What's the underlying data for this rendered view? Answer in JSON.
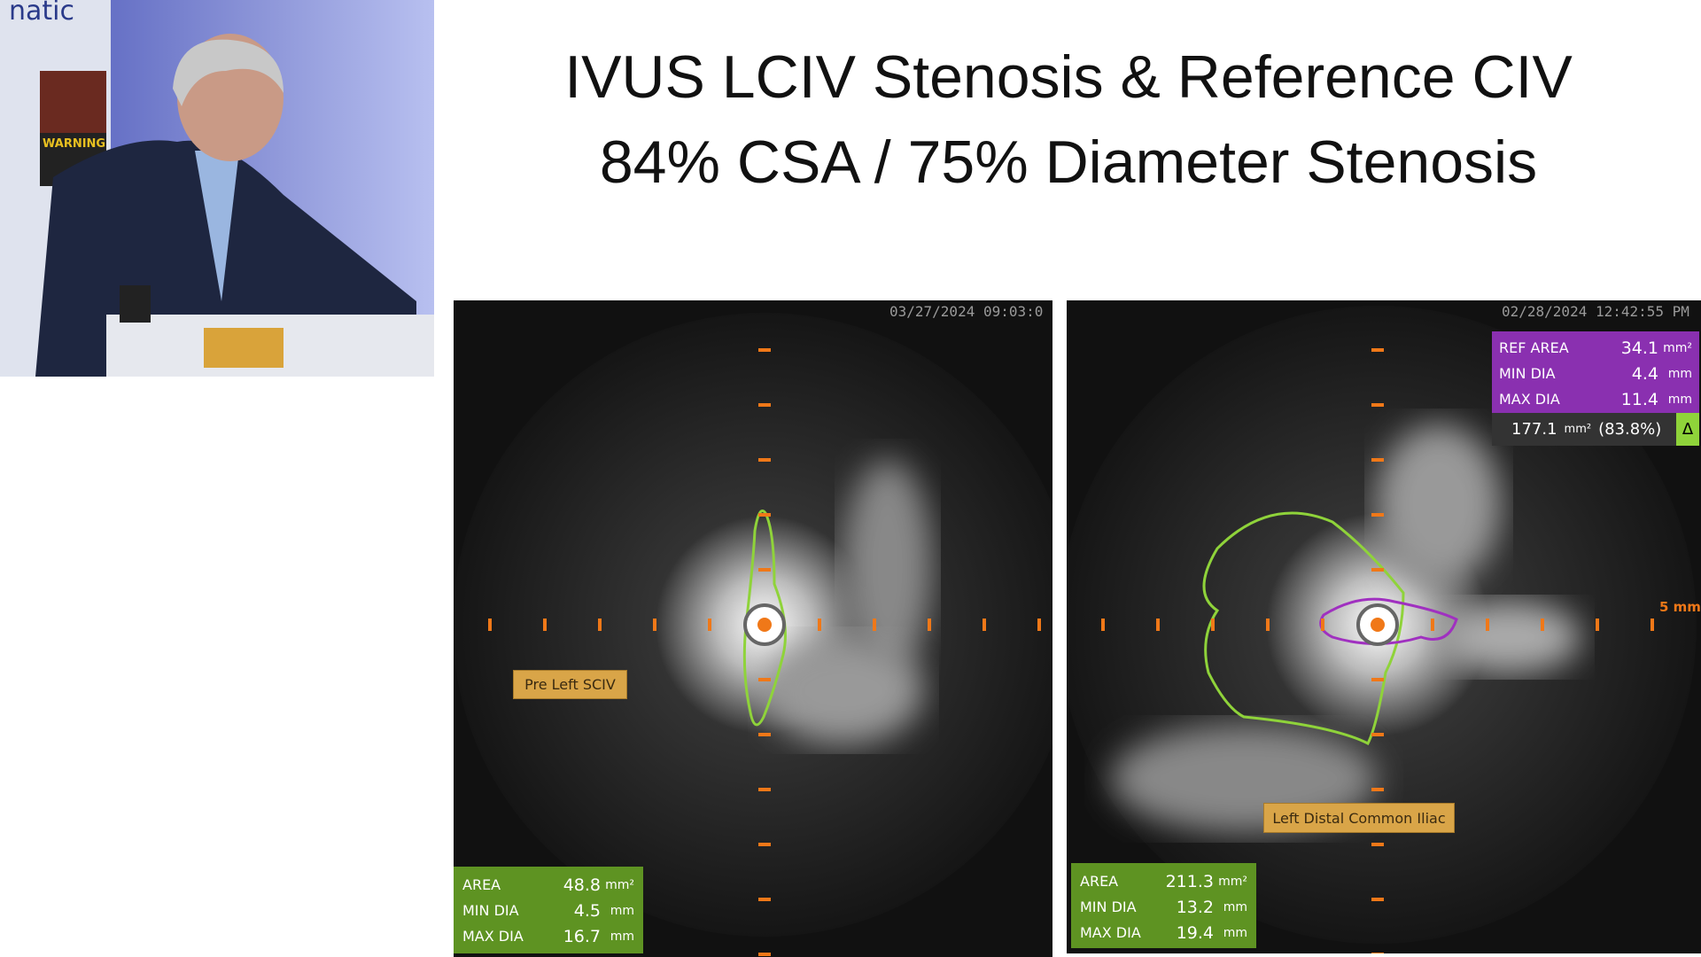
{
  "title": {
    "line1": "IVUS LCIV Stenosis & Reference CIV",
    "line2": "84% CSA / 75% Diameter Stenosis"
  },
  "video": {
    "texts": [
      "natic",
      "WARNING"
    ]
  },
  "panels": [
    {
      "timestamp": "03/27/2024 09:03:0",
      "label": "Pre Left SCIV",
      "measures": [
        [
          "AREA",
          48.8,
          "mm²"
        ],
        [
          "MIN DIA",
          4.5,
          "mm"
        ],
        [
          "MAX DIA",
          16.7,
          "mm"
        ]
      ]
    },
    {
      "timestamp": "02/28/2024 12:42:55 PM",
      "label": "Left Distal Common Iliac",
      "scale": "5 mm",
      "reference": [
        [
          "REF AREA",
          34.1,
          "mm²"
        ],
        [
          "MIN DIA",
          4.4,
          "mm"
        ],
        [
          "MAX DIA",
          11.4,
          "mm"
        ]
      ],
      "delta": {
        "value": 177.1,
        "unit": "mm²",
        "percent": "(83.8%)",
        "symbol": "Δ"
      },
      "measures": [
        [
          "AREA",
          211.3,
          "mm²"
        ],
        [
          "MIN DIA",
          13.2,
          "mm"
        ],
        [
          "MAX DIA",
          19.4,
          "mm"
        ]
      ]
    }
  ]
}
